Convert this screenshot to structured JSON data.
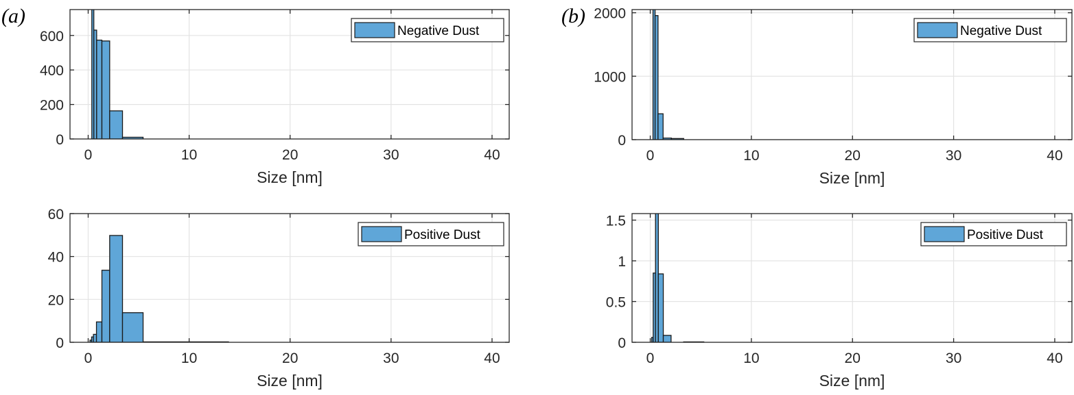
{
  "panel_labels": [
    "(a)",
    "(b)"
  ],
  "colors": {
    "bar_fill": "#5fa6d8",
    "bar_edge": "#1a1a1a",
    "grid": "#e3e3e3",
    "axis": "#262626"
  },
  "chart_data": [
    {
      "type": "bar",
      "panel": "(a)",
      "legend": "Negative Dust",
      "legend_position": "top-right",
      "xlabel": "Size [nm]",
      "ylabel": "",
      "xlim": [
        -1.8,
        41.7
      ],
      "ylim": [
        0,
        750
      ],
      "grid": true,
      "xticks": [
        0,
        10,
        20,
        30,
        40
      ],
      "yticks": [
        0,
        200,
        400,
        600
      ],
      "bin_edges": [
        0.36,
        0.56,
        0.84,
        1.36,
        2.13,
        3.4,
        5.44
      ],
      "values": [
        760,
        631,
        573,
        568,
        163,
        10
      ]
    },
    {
      "type": "bar",
      "panel": "(a)",
      "legend": "Positive Dust",
      "legend_position": "top-right",
      "xlabel": "Size [nm]",
      "ylabel": "",
      "xlim": [
        -1.8,
        41.7
      ],
      "ylim": [
        0,
        60
      ],
      "grid": true,
      "xticks": [
        0,
        10,
        20,
        30,
        40
      ],
      "yticks": [
        0,
        20,
        40,
        60
      ],
      "bin_edges": [
        0.18,
        0.34,
        0.52,
        0.82,
        1.36,
        2.13,
        3.4,
        5.44,
        13.9
      ],
      "values": [
        1,
        2.5,
        3.7,
        9.5,
        33.6,
        49.8,
        13.8,
        0.2
      ]
    },
    {
      "type": "bar",
      "panel": "(b)",
      "legend": "Negative Dust",
      "legend_position": "top-right",
      "xlabel": "Size [nm]",
      "ylabel": "",
      "xlim": [
        -1.8,
        41.7
      ],
      "ylim": [
        0,
        2050
      ],
      "grid": true,
      "xticks": [
        0,
        10,
        20,
        30,
        40
      ],
      "yticks": [
        0,
        1000,
        2000
      ],
      "bin_edges": [
        0.27,
        0.48,
        0.77,
        1.27,
        2.09,
        3.31
      ],
      "values": [
        2100,
        1956,
        408,
        25,
        18
      ]
    },
    {
      "type": "bar",
      "panel": "(b)",
      "legend": "Positive Dust",
      "legend_position": "top-right",
      "xlabel": "Size [nm]",
      "ylabel": "",
      "xlim": [
        -1.8,
        41.7
      ],
      "ylim": [
        0,
        1.58
      ],
      "grid": true,
      "xticks": [
        0,
        10,
        20,
        30,
        40
      ],
      "yticks": [
        0,
        0.5,
        1,
        1.5
      ],
      "bin_edges": [
        0.14,
        0.29,
        0.52,
        0.8,
        1.29,
        2.06,
        3.3,
        5.3
      ],
      "values": [
        0.06,
        0.85,
        1.7,
        0.84,
        0.085,
        0,
        0.005
      ]
    }
  ]
}
